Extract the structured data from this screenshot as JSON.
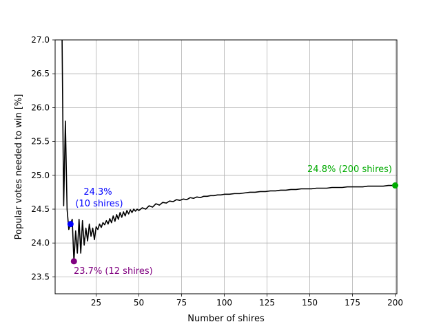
{
  "chart_data": {
    "type": "line",
    "title": "",
    "xlabel": "Number of shires",
    "ylabel": "Popular votes needed to win [%]",
    "xlim": [
      1,
      201
    ],
    "ylim": [
      23.25,
      27.0
    ],
    "grid": true,
    "xticks": [
      25,
      50,
      75,
      100,
      125,
      150,
      175,
      200
    ],
    "xtick_labels": [
      "25",
      "50",
      "75",
      "100",
      "125",
      "150",
      "175",
      "200"
    ],
    "yticks": [
      23.5,
      24.0,
      24.5,
      25.0,
      25.5,
      26.0,
      26.5,
      27.0
    ],
    "ytick_labels": [
      "23.5",
      "24.0",
      "24.5",
      "25.0",
      "25.5",
      "26.0",
      "26.5",
      "27.0"
    ],
    "series": [
      {
        "color": "#000000",
        "x": [
          5,
          6,
          7,
          8,
          9,
          10,
          11,
          12,
          13,
          14,
          15,
          16,
          17,
          18,
          19,
          20,
          21,
          22,
          23,
          24,
          25,
          26,
          27,
          28,
          29,
          30,
          31,
          32,
          33,
          34,
          35,
          36,
          37,
          38,
          39,
          40,
          41,
          42,
          43,
          44,
          45,
          46,
          47,
          48,
          49,
          50,
          52,
          54,
          56,
          58,
          60,
          62,
          64,
          66,
          68,
          70,
          72,
          74,
          76,
          78,
          80,
          82,
          84,
          86,
          88,
          90,
          92,
          94,
          96,
          98,
          100,
          103,
          106,
          109,
          112,
          115,
          118,
          121,
          124,
          127,
          130,
          133,
          136,
          139,
          142,
          145,
          148,
          151,
          154,
          157,
          160,
          163,
          166,
          169,
          172,
          175,
          178,
          181,
          184,
          187,
          190,
          193,
          196,
          199,
          200
        ],
        "y": [
          27.2,
          24.55,
          25.8,
          24.5,
          24.2,
          24.28,
          24.35,
          23.73,
          24.18,
          23.85,
          24.35,
          23.85,
          24.33,
          23.97,
          24.22,
          24.03,
          24.28,
          24.1,
          24.22,
          24.05,
          24.24,
          24.2,
          24.28,
          24.23,
          24.3,
          24.27,
          24.33,
          24.28,
          24.36,
          24.3,
          24.4,
          24.32,
          24.42,
          24.35,
          24.45,
          24.38,
          24.46,
          24.4,
          24.48,
          24.43,
          24.49,
          24.45,
          24.5,
          24.47,
          24.5,
          24.48,
          24.52,
          24.5,
          24.55,
          24.53,
          24.58,
          24.56,
          24.6,
          24.59,
          24.62,
          24.61,
          24.64,
          24.63,
          24.65,
          24.64,
          24.67,
          24.66,
          24.68,
          24.67,
          24.69,
          24.69,
          24.7,
          24.7,
          24.71,
          24.71,
          24.72,
          24.72,
          24.73,
          24.73,
          24.74,
          24.75,
          24.75,
          24.76,
          24.76,
          24.77,
          24.77,
          24.78,
          24.78,
          24.79,
          24.79,
          24.8,
          24.8,
          24.8,
          24.81,
          24.81,
          24.81,
          24.82,
          24.82,
          24.82,
          24.83,
          24.83,
          24.83,
          24.83,
          24.84,
          24.84,
          24.84,
          24.84,
          24.85,
          24.85,
          24.85
        ]
      }
    ],
    "highlights": [
      {
        "x": 10,
        "y": 24.28,
        "color": "#0000ff",
        "label_line1": "24.3%",
        "label_line2": "(10 shires)"
      },
      {
        "x": 12,
        "y": 23.73,
        "color": "#800080",
        "label_line1": "23.7% (12 shires)",
        "label_line2": ""
      },
      {
        "x": 200,
        "y": 24.85,
        "color": "#00aa00",
        "label_line1": "24.8% (200 shires)",
        "label_line2": ""
      }
    ]
  }
}
